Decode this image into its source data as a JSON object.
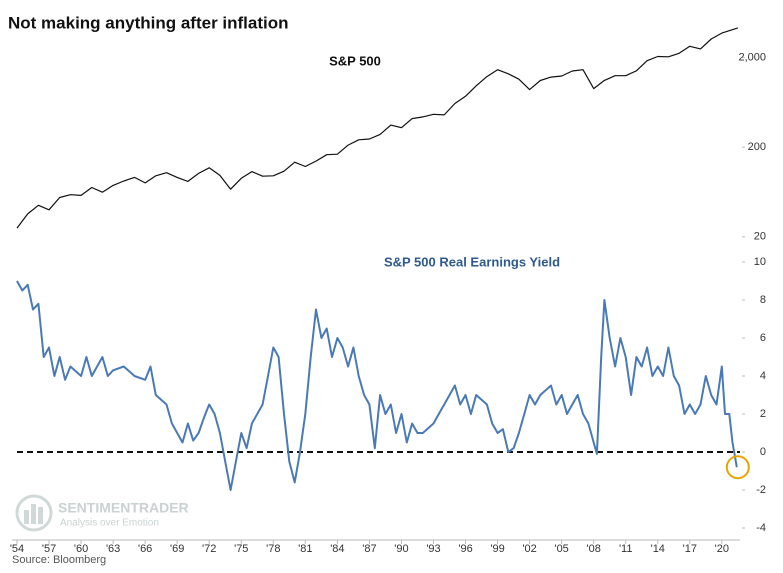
{
  "title": "Not making anything after inflation",
  "source": "Source: Bloomberg",
  "watermark": {
    "name": "SENTIMENTRADER",
    "tagline": "Analysis over Emotion"
  },
  "chart_data": [
    {
      "type": "line",
      "title": "S&P 500",
      "log_scale": true,
      "xlim": [
        1954,
        2021.7
      ],
      "ylim": [
        15,
        5000
      ],
      "yticks": [
        20,
        200,
        {
          "value": 2000,
          "label": "2,000"
        }
      ],
      "series": [
        {
          "name": "S&P 500",
          "color": "#111111",
          "x": [
            1954,
            1955,
            1956,
            1957,
            1958,
            1959,
            1960,
            1961,
            1962,
            1963,
            1964,
            1965,
            1966,
            1967,
            1968,
            1969,
            1970,
            1971,
            1972,
            1973,
            1974,
            1975,
            1976,
            1977,
            1978,
            1979,
            1980,
            1981,
            1982,
            1983,
            1984,
            1985,
            1986,
            1987,
            1988,
            1989,
            1990,
            1991,
            1992,
            1993,
            1994,
            1995,
            1996,
            1997,
            1998,
            1999,
            2000,
            2001,
            2002,
            2003,
            2004,
            2005,
            2006,
            2007,
            2008,
            2009,
            2010,
            2011,
            2012,
            2013,
            2014,
            2015,
            2016,
            2017,
            2018,
            2019,
            2020,
            2021.5
          ],
          "values": [
            25,
            36,
            45,
            40,
            55,
            59,
            58,
            71,
            63,
            75,
            84,
            92,
            80,
            96,
            104,
            92,
            83,
            102,
            118,
            97,
            68,
            90,
            107,
            95,
            96,
            108,
            136,
            122,
            140,
            165,
            167,
            211,
            242,
            247,
            278,
            353,
            330,
            417,
            436,
            466,
            459,
            616,
            741,
            970,
            1229,
            1469,
            1320,
            1148,
            880,
            1112,
            1212,
            1248,
            1418,
            1468,
            903,
            1115,
            1258,
            1258,
            1426,
            1848,
            2059,
            2044,
            2239,
            2674,
            2507,
            3231,
            3756,
            4300
          ]
        }
      ]
    },
    {
      "type": "line",
      "title": "S&P 500 Real Earnings Yield",
      "xlim": [
        1954,
        2021.7
      ],
      "ylim": [
        -4,
        10
      ],
      "yticks": [
        -4,
        -2,
        0,
        2,
        4,
        6,
        8,
        10
      ],
      "reference_line": 0,
      "xticks": [
        {
          "value": 1954,
          "label": "'54"
        },
        {
          "value": 1957,
          "label": "'57"
        },
        {
          "value": 1960,
          "label": "'60"
        },
        {
          "value": 1963,
          "label": "'63"
        },
        {
          "value": 1966,
          "label": "'66"
        },
        {
          "value": 1969,
          "label": "'69"
        },
        {
          "value": 1972,
          "label": "'72"
        },
        {
          "value": 1975,
          "label": "'75"
        },
        {
          "value": 1978,
          "label": "'78"
        },
        {
          "value": 1981,
          "label": "'81"
        },
        {
          "value": 1984,
          "label": "'84"
        },
        {
          "value": 1987,
          "label": "'87"
        },
        {
          "value": 1990,
          "label": "'90"
        },
        {
          "value": 1993,
          "label": "'93"
        },
        {
          "value": 1996,
          "label": "'96"
        },
        {
          "value": 1999,
          "label": "'99"
        },
        {
          "value": 2002,
          "label": "'02"
        },
        {
          "value": 2005,
          "label": "'05"
        },
        {
          "value": 2008,
          "label": "'08"
        },
        {
          "value": 2011,
          "label": "'11"
        },
        {
          "value": 2014,
          "label": "'14"
        },
        {
          "value": 2017,
          "label": "'17"
        },
        {
          "value": 2020,
          "label": "'20"
        }
      ],
      "series": [
        {
          "name": "S&P 500 Real Earnings Yield",
          "color": "#4a7ab5",
          "x": [
            1954,
            1954.5,
            1955,
            1955.5,
            1956,
            1956.5,
            1957,
            1957.5,
            1958,
            1958.5,
            1959,
            1960,
            1960.5,
            1961,
            1962,
            1962.5,
            1963,
            1964,
            1965,
            1966,
            1966.5,
            1967,
            1968,
            1968.5,
            1969,
            1969.5,
            1970,
            1970.5,
            1971,
            1971.5,
            1972,
            1972.5,
            1973,
            1973.5,
            1974,
            1974.5,
            1975,
            1975.5,
            1976,
            1977,
            1977.5,
            1978,
            1978.5,
            1979,
            1979.5,
            1980,
            1980.5,
            1981,
            1981.5,
            1982,
            1982.5,
            1983,
            1983.5,
            1984,
            1984.5,
            1985,
            1985.5,
            1986,
            1986.5,
            1987,
            1987.5,
            1988,
            1988.5,
            1989,
            1989.5,
            1990,
            1990.5,
            1991,
            1991.5,
            1992,
            1993,
            1993.5,
            1994,
            1995,
            1995.5,
            1996,
            1996.5,
            1997,
            1998,
            1998.5,
            1999,
            1999.5,
            2000,
            2000.5,
            2001,
            2001.5,
            2002,
            2002.5,
            2003,
            2004,
            2004.5,
            2005,
            2005.5,
            2006,
            2006.5,
            2007,
            2007.5,
            2008,
            2008.3,
            2008.7,
            2009,
            2009.5,
            2010,
            2010.5,
            2011,
            2011.5,
            2012,
            2012.5,
            2013,
            2013.5,
            2014,
            2014.5,
            2015,
            2015.5,
            2016,
            2016.5,
            2017,
            2017.5,
            2018,
            2018.5,
            2019,
            2019.5,
            2020,
            2020.3,
            2020.7,
            2021,
            2021.4
          ],
          "values": [
            9,
            8.5,
            8.8,
            7.5,
            7.8,
            5,
            5.5,
            4,
            5,
            3.8,
            4.5,
            4,
            5,
            4,
            5,
            4,
            4.3,
            4.5,
            4,
            3.8,
            4.5,
            3,
            2.5,
            1.5,
            1,
            0.5,
            1.5,
            0.6,
            1,
            1.8,
            2.5,
            2,
            1,
            -0.5,
            -2,
            -0.5,
            1,
            0.2,
            1.5,
            2.5,
            4,
            5.5,
            5,
            2,
            -0.5,
            -1.6,
            0,
            2,
            5,
            7.5,
            6,
            6.5,
            5,
            6,
            5.5,
            4.5,
            5.5,
            4,
            3,
            2.5,
            0.2,
            3,
            2,
            2.5,
            1,
            2,
            0.5,
            1.5,
            1,
            1,
            1.5,
            2,
            2.5,
            3.5,
            2.5,
            3,
            2,
            3,
            2.5,
            1.5,
            1,
            1.2,
            0,
            0.2,
            1,
            2,
            3,
            2.5,
            3,
            3.5,
            2.5,
            3,
            2,
            2.5,
            3,
            2,
            1.5,
            0.5,
            -0.1,
            5,
            8,
            6,
            4.5,
            6,
            5,
            3,
            5,
            4.5,
            5.5,
            4,
            4.5,
            4,
            5.5,
            4,
            3.5,
            2,
            2.5,
            2,
            2.5,
            4,
            3,
            2.5,
            4.5,
            2,
            2,
            0.5,
            -0.8
          ]
        }
      ]
    }
  ]
}
